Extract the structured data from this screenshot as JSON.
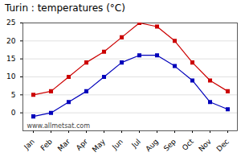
{
  "chart_data": {
    "type": "line",
    "title": "Turin : temperatures (°C)",
    "categories": [
      "Jan",
      "Feb",
      "Mar",
      "Apr",
      "May",
      "Jun",
      "Jul",
      "Aug",
      "Sep",
      "Oct",
      "Nov",
      "Dec"
    ],
    "series": [
      {
        "color": "#cc0000",
        "marker": "square",
        "values": [
          5,
          6,
          10,
          14,
          17,
          21,
          25,
          24,
          20,
          14,
          9,
          6
        ]
      },
      {
        "color": "#0000bb",
        "marker": "square",
        "values": [
          -1,
          0,
          3,
          6,
          10,
          14,
          16,
          16,
          13,
          9,
          3,
          1
        ]
      }
    ],
    "ylim": [
      -5,
      25
    ],
    "yticks": [
      0,
      5,
      10,
      15,
      20,
      25
    ],
    "grid": true,
    "annotations": [
      "www.allmetsat.com"
    ]
  }
}
